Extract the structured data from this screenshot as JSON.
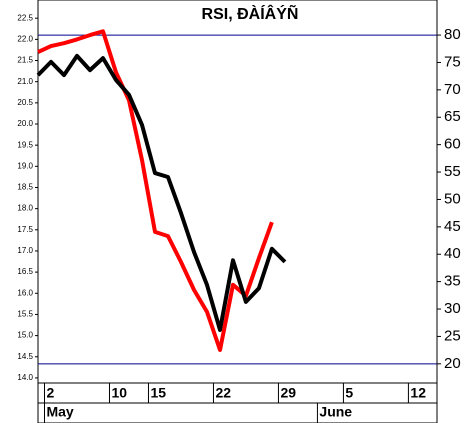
{
  "chart_data": {
    "type": "line",
    "title": "RSI, ÐÀÍÂÝÑ",
    "xlim": [
      0,
      30.7
    ],
    "xticks": [
      {
        "value": 0.5,
        "label": "2"
      },
      {
        "value": 5.5,
        "label": "10"
      },
      {
        "value": 8.5,
        "label": "15"
      },
      {
        "value": 13.5,
        "label": "22"
      },
      {
        "value": 18.5,
        "label": "29"
      },
      {
        "value": 23.5,
        "label": "5"
      },
      {
        "value": 28.5,
        "label": "12"
      }
    ],
    "months": [
      {
        "value": 0.5,
        "label": "May"
      },
      {
        "value": 21.5,
        "label": "June"
      }
    ],
    "ylim": [
      13.88,
      22.93
    ],
    "yticks": [
      {
        "value": 14,
        "label": "14.0"
      },
      14.5,
      {
        "value": 15,
        "label": "15.0"
      },
      15.5,
      {
        "value": 16,
        "label": "16.0"
      },
      16.5,
      {
        "value": 17,
        "label": "17.0"
      },
      17.5,
      {
        "value": 18,
        "label": "18.0"
      },
      18.5,
      {
        "value": 19,
        "label": "19.0"
      },
      19.5,
      {
        "value": 20,
        "label": "20.0"
      },
      20.5,
      {
        "value": 21,
        "label": "21.0"
      },
      21.5,
      {
        "value": 22,
        "label": "22.0"
      },
      22.5
    ],
    "y2lim": [
      16.5,
      86.4
    ],
    "y2ticks": [
      20,
      25,
      30,
      35,
      40,
      45,
      50,
      55,
      60,
      65,
      70,
      75,
      80
    ],
    "hlines": [
      80,
      20
    ],
    "hline_color": "#00008b",
    "series": [
      {
        "color": "#ff0000",
        "x": [
          0,
          1,
          2,
          3,
          4,
          5,
          6,
          7,
          8,
          9,
          10,
          11,
          12,
          13,
          14,
          15,
          16,
          17,
          18
        ],
        "values": [
          21.7,
          21.84,
          21.91,
          22.0,
          22.1,
          22.19,
          21.22,
          20.56,
          19.15,
          17.45,
          17.35,
          16.74,
          16.08,
          15.56,
          14.66,
          16.2,
          15.94,
          16.83,
          17.68
        ]
      },
      {
        "color": "#000000",
        "axis": "y2",
        "x": [
          0,
          1,
          2,
          3,
          4,
          5,
          6,
          7,
          8,
          9,
          10,
          11,
          12,
          13,
          14,
          15,
          16,
          17,
          18,
          19
        ],
        "values": [
          72.7,
          75.1,
          72.7,
          76.2,
          73.6,
          75.8,
          71.8,
          69.1,
          63.6,
          54.8,
          54.1,
          47.5,
          40.4,
          34.4,
          26.2,
          38.9,
          31.3,
          33.8,
          41.0,
          38.6
        ]
      }
    ]
  }
}
